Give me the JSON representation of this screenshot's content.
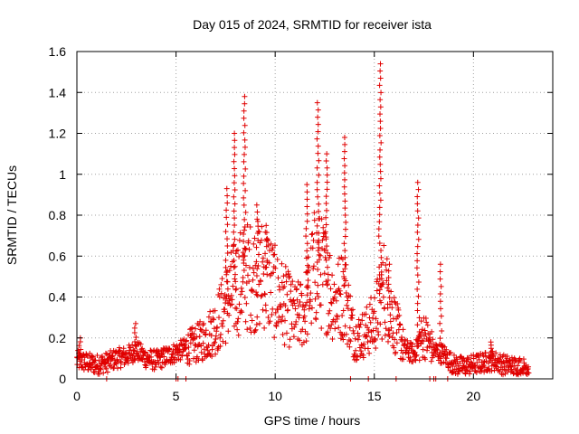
{
  "chart_data": {
    "type": "scatter",
    "title": "Day 015 of 2024, SRMTID for receiver ista",
    "xlabel": "GPS time / hours",
    "ylabel": "SRMTID / TECUs",
    "xlim": [
      0,
      24
    ],
    "ylim": [
      0,
      1.6
    ],
    "x_ticks": [
      "0",
      "5",
      "10",
      "15",
      "20"
    ],
    "y_ticks": [
      "0",
      "0.2",
      "0.4",
      "0.6",
      "0.8",
      "1",
      "1.2",
      "1.4",
      "1.6"
    ],
    "grid": true,
    "marker": "plus",
    "marker_color": "#e00000",
    "series": [
      {
        "name": "SRMTID",
        "profile": {
          "x": [
            0,
            0.5,
            1,
            1.5,
            2,
            2.5,
            3,
            3.5,
            4,
            4.5,
            5,
            5.5,
            6,
            6.5,
            7,
            7.5,
            8,
            8.5,
            9,
            9.5,
            10,
            10.5,
            11,
            11.5,
            12,
            12.5,
            13,
            13.5,
            14,
            14.5,
            15,
            15.5,
            16,
            16.5,
            17,
            17.5,
            18,
            18.5,
            19,
            19.5,
            20,
            20.5,
            21,
            21.5,
            22,
            22.5,
            22.8
          ],
          "y": [
            0.09,
            0.08,
            0.07,
            0.08,
            0.1,
            0.11,
            0.14,
            0.1,
            0.09,
            0.11,
            0.13,
            0.15,
            0.17,
            0.2,
            0.26,
            0.36,
            0.45,
            0.5,
            0.5,
            0.52,
            0.42,
            0.36,
            0.3,
            0.33,
            0.55,
            0.5,
            0.38,
            0.42,
            0.2,
            0.22,
            0.28,
            0.45,
            0.28,
            0.15,
            0.12,
            0.22,
            0.14,
            0.12,
            0.07,
            0.06,
            0.07,
            0.08,
            0.09,
            0.07,
            0.06,
            0.06,
            0.06
          ]
        },
        "peaks": [
          {
            "x": 0.15,
            "y": 0.2
          },
          {
            "x": 2.95,
            "y": 0.27
          },
          {
            "x": 7.55,
            "y": 0.93
          },
          {
            "x": 7.95,
            "y": 1.2
          },
          {
            "x": 8.45,
            "y": 1.38
          },
          {
            "x": 9.1,
            "y": 0.85
          },
          {
            "x": 9.55,
            "y": 0.75
          },
          {
            "x": 11.6,
            "y": 0.95
          },
          {
            "x": 12.15,
            "y": 1.35
          },
          {
            "x": 12.6,
            "y": 1.1
          },
          {
            "x": 13.5,
            "y": 1.18
          },
          {
            "x": 15.3,
            "y": 1.54
          },
          {
            "x": 15.75,
            "y": 0.56
          },
          {
            "x": 17.2,
            "y": 0.96
          },
          {
            "x": 18.35,
            "y": 0.56
          },
          {
            "x": 20.9,
            "y": 0.18
          }
        ],
        "zero_points": [
          1.5,
          5.0,
          5.1,
          5.5,
          13.8,
          14.7,
          16.1,
          17.8,
          18.0,
          18.1,
          18.7
        ]
      }
    ]
  }
}
